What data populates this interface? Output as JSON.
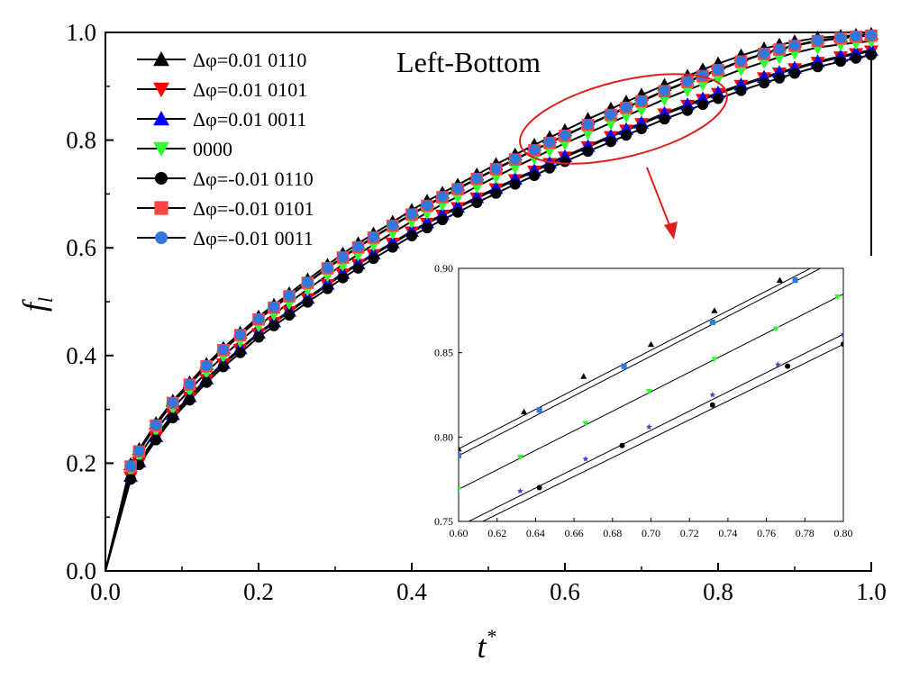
{
  "chart_data": [
    {
      "type": "line",
      "title": "Left-Bottom",
      "xlabel": "t*",
      "ylabel": "f_l",
      "xlim": [
        0.0,
        1.0
      ],
      "ylim": [
        0.0,
        1.0
      ],
      "xticks": [
        "0.0",
        "0.2",
        "0.4",
        "0.6",
        "0.8",
        "1.0"
      ],
      "yticks": [
        "0.0",
        "0.2",
        "0.4",
        "0.6",
        "0.8",
        "1.0"
      ],
      "grid": false,
      "legend_position": "top-left",
      "x": [
        0.0,
        0.033,
        0.044,
        0.066,
        0.088,
        0.11,
        0.132,
        0.154,
        0.176,
        0.2,
        0.22,
        0.24,
        0.264,
        0.29,
        0.31,
        0.33,
        0.35,
        0.375,
        0.4,
        0.42,
        0.44,
        0.46,
        0.485,
        0.51,
        0.535,
        0.56,
        0.58,
        0.6,
        0.63,
        0.66,
        0.68,
        0.7,
        0.73,
        0.76,
        0.78,
        0.8,
        0.83,
        0.86,
        0.88,
        0.9,
        0.93,
        0.96,
        0.98,
        1.0
      ],
      "series": [
        {
          "name": "Δφ=0.01 0110",
          "marker": "triangle-up",
          "color": "#000000",
          "values": [
            0.0,
            0.198,
            0.226,
            0.274,
            0.316,
            0.35,
            0.384,
            0.414,
            0.442,
            0.472,
            0.494,
            0.515,
            0.541,
            0.568,
            0.589,
            0.608,
            0.626,
            0.648,
            0.67,
            0.687,
            0.702,
            0.717,
            0.736,
            0.755,
            0.773,
            0.791,
            0.805,
            0.818,
            0.839,
            0.858,
            0.871,
            0.884,
            0.902,
            0.919,
            0.931,
            0.942,
            0.957,
            0.97,
            0.977,
            0.983,
            0.99,
            0.993,
            0.995,
            0.997
          ]
        },
        {
          "name": "Δφ=0.01 0101",
          "marker": "triangle-down",
          "color": "#ff0000",
          "values": [
            0.0,
            0.174,
            0.201,
            0.248,
            0.289,
            0.322,
            0.355,
            0.384,
            0.411,
            0.44,
            0.461,
            0.481,
            0.505,
            0.531,
            0.551,
            0.569,
            0.587,
            0.608,
            0.629,
            0.645,
            0.66,
            0.674,
            0.692,
            0.709,
            0.726,
            0.742,
            0.756,
            0.768,
            0.787,
            0.806,
            0.818,
            0.83,
            0.848,
            0.864,
            0.875,
            0.886,
            0.901,
            0.915,
            0.924,
            0.932,
            0.944,
            0.954,
            0.96,
            0.965
          ]
        },
        {
          "name": "Δφ=0.01 0011",
          "marker": "triangle-up",
          "color": "#0000ff",
          "values": [
            0.0,
            0.176,
            0.203,
            0.25,
            0.291,
            0.324,
            0.357,
            0.386,
            0.413,
            0.442,
            0.463,
            0.483,
            0.507,
            0.533,
            0.553,
            0.571,
            0.589,
            0.61,
            0.631,
            0.647,
            0.662,
            0.676,
            0.694,
            0.711,
            0.728,
            0.744,
            0.758,
            0.77,
            0.789,
            0.808,
            0.82,
            0.832,
            0.85,
            0.866,
            0.877,
            0.888,
            0.903,
            0.917,
            0.926,
            0.934,
            0.946,
            0.956,
            0.962,
            0.967
          ]
        },
        {
          "name": "0000",
          "marker": "triangle-down",
          "color": "#33ff33",
          "values": [
            0.0,
            0.186,
            0.213,
            0.261,
            0.302,
            0.336,
            0.369,
            0.399,
            0.427,
            0.456,
            0.477,
            0.498,
            0.523,
            0.549,
            0.569,
            0.588,
            0.606,
            0.628,
            0.649,
            0.665,
            0.681,
            0.695,
            0.714,
            0.732,
            0.75,
            0.767,
            0.781,
            0.794,
            0.813,
            0.832,
            0.845,
            0.857,
            0.876,
            0.893,
            0.904,
            0.915,
            0.931,
            0.945,
            0.954,
            0.962,
            0.972,
            0.978,
            0.981,
            0.984
          ]
        },
        {
          "name": "Δφ=-0.01 0110",
          "marker": "circle",
          "color": "#000000",
          "values": [
            0.0,
            0.17,
            0.197,
            0.243,
            0.284,
            0.317,
            0.35,
            0.379,
            0.405,
            0.434,
            0.455,
            0.475,
            0.499,
            0.524,
            0.544,
            0.562,
            0.58,
            0.601,
            0.622,
            0.637,
            0.652,
            0.666,
            0.684,
            0.701,
            0.718,
            0.734,
            0.748,
            0.76,
            0.779,
            0.797,
            0.809,
            0.821,
            0.839,
            0.855,
            0.866,
            0.877,
            0.892,
            0.906,
            0.915,
            0.924,
            0.936,
            0.946,
            0.952,
            0.958
          ]
        },
        {
          "name": "Δφ=-0.01 0101",
          "marker": "square",
          "color": "#ff4444",
          "values": [
            0.0,
            0.194,
            0.222,
            0.27,
            0.312,
            0.346,
            0.38,
            0.41,
            0.438,
            0.467,
            0.489,
            0.51,
            0.535,
            0.562,
            0.582,
            0.601,
            0.619,
            0.641,
            0.662,
            0.678,
            0.694,
            0.709,
            0.728,
            0.746,
            0.764,
            0.781,
            0.795,
            0.808,
            0.828,
            0.847,
            0.86,
            0.872,
            0.891,
            0.908,
            0.919,
            0.93,
            0.946,
            0.96,
            0.968,
            0.975,
            0.984,
            0.989,
            0.992,
            0.994
          ]
        },
        {
          "name": "Δφ=-0.01 0011",
          "marker": "circle",
          "color": "#3377dd",
          "values": [
            0.0,
            0.195,
            0.223,
            0.271,
            0.313,
            0.347,
            0.381,
            0.411,
            0.439,
            0.468,
            0.49,
            0.511,
            0.536,
            0.563,
            0.583,
            0.602,
            0.62,
            0.642,
            0.663,
            0.679,
            0.695,
            0.71,
            0.729,
            0.747,
            0.765,
            0.782,
            0.796,
            0.809,
            0.829,
            0.848,
            0.861,
            0.873,
            0.892,
            0.909,
            0.92,
            0.931,
            0.947,
            0.961,
            0.969,
            0.976,
            0.985,
            0.99,
            0.993,
            0.995
          ]
        }
      ]
    },
    {
      "type": "line",
      "title": "",
      "xlabel": "",
      "ylabel": "",
      "xlim": [
        0.6,
        0.8
      ],
      "ylim": [
        0.75,
        0.9
      ],
      "xticks": [
        "0.60",
        "0.62",
        "0.64",
        "0.66",
        "0.68",
        "0.70",
        "0.72",
        "0.74",
        "0.76",
        "0.78",
        "0.80"
      ],
      "yticks": [
        "0.75",
        "0.80",
        "0.85",
        "0.90"
      ],
      "grid": false,
      "series": [
        {
          "name": "Δφ=0.01 0110",
          "marker": "triangle-up",
          "color": "#000000",
          "x": [
            0.6,
            0.634,
            0.665,
            0.7,
            0.733,
            0.767,
            0.8
          ],
          "values": [
            0.793,
            0.815,
            0.836,
            0.855,
            0.875,
            0.893,
            0.91
          ]
        },
        {
          "name": "Δφ=-0.01 0011",
          "marker": "square",
          "color": "#3377dd",
          "x": [
            0.6,
            0.642,
            0.686,
            0.732,
            0.775,
            0.8
          ],
          "values": [
            0.789,
            0.816,
            0.842,
            0.868,
            0.893,
            0.907
          ]
        },
        {
          "name": "0000",
          "marker": "triangle-down",
          "color": "#33ff33",
          "x": [
            0.6,
            0.632,
            0.666,
            0.699,
            0.733,
            0.765,
            0.797
          ],
          "values": [
            0.769,
            0.788,
            0.808,
            0.827,
            0.846,
            0.864,
            0.883
          ]
        },
        {
          "name": "Δφ=0.01 0011",
          "marker": "star",
          "color": "#6633cc",
          "x": [
            0.6,
            0.632,
            0.666,
            0.699,
            0.732,
            0.766,
            0.8
          ],
          "values": [
            0.747,
            0.768,
            0.787,
            0.806,
            0.825,
            0.843,
            0.861
          ]
        },
        {
          "name": "Δφ=-0.01 0110",
          "marker": "circle",
          "color": "#000000",
          "x": [
            0.6,
            0.642,
            0.685,
            0.732,
            0.771,
            0.8
          ],
          "values": [
            0.743,
            0.77,
            0.795,
            0.819,
            0.842,
            0.855
          ]
        }
      ]
    }
  ],
  "annotations": {
    "title": "Left-Bottom",
    "ylabel_main": "f",
    "ylabel_sub": "l",
    "xlabel_main": "t",
    "xlabel_sup": "*"
  }
}
